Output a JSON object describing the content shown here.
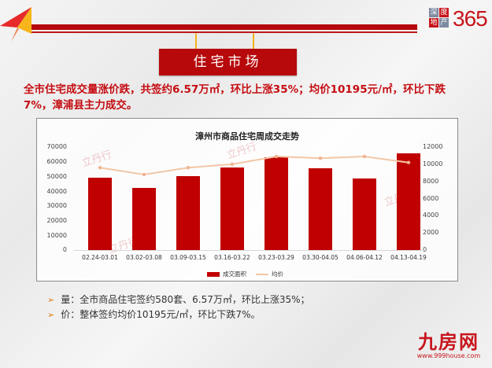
{
  "header": {
    "logo_small_chars": [
      "深",
      "度",
      "地",
      "产"
    ],
    "logo_number": "365",
    "banner_title": "住宅市场"
  },
  "headline": "全市住宅成交量涨价跌，共签约6.57万㎡，环比上涨35%；均价10195元/㎡，环比下跌7%，漳浦县主力成交。",
  "chart": {
    "title": "漳州市商品住宅周成交走势",
    "legend_bar": "成交面积",
    "legend_line": "均价"
  },
  "chart_data": {
    "type": "bar",
    "title": "漳州市商品住宅周成交走势",
    "categories": [
      "02.24-03.01",
      "03.02-03.08",
      "03.09-03.15",
      "03.16-03.22",
      "03.23-03.29",
      "03.30-04.05",
      "04.06-04.12",
      "04.13-04.19"
    ],
    "series": [
      {
        "name": "成交面积",
        "type": "bar",
        "axis": "left",
        "color": "#c00000",
        "values": [
          49000,
          42300,
          50200,
          56100,
          63000,
          55600,
          48600,
          65700
        ]
      },
      {
        "name": "均价",
        "type": "line",
        "axis": "right",
        "color": "#f3c7a5",
        "values": [
          9600,
          8800,
          9600,
          10000,
          10900,
          10700,
          10900,
          10195
        ]
      }
    ],
    "y_left": {
      "ticks": [
        "70000",
        "60000",
        "50000",
        "40000",
        "30000",
        "20000",
        "10000",
        "0"
      ],
      "ylim": [
        0,
        70000
      ]
    },
    "y_right": {
      "ticks": [
        "12000",
        "10000",
        "8000",
        "6000",
        "4000",
        "2000",
        "0"
      ],
      "ylim": [
        0,
        12000
      ]
    },
    "xlabel": "",
    "ylabel": "",
    "legend_position": "bottom",
    "grid": false
  },
  "bullets": [
    "量：全市商品住宅签约580套、6.57万㎡，环比上涨35%；",
    "价：整体签约均价10195元/㎡，环比下跌7%。"
  ],
  "bullet_marker": "➢",
  "watermark": "立丹行",
  "footer": {
    "logo_text": "九房网",
    "url": "www.999house.com"
  },
  "colors": {
    "brand_red": "#b7090b",
    "bar": "#c00000",
    "line": "#f3c7a5",
    "accent_gold": "#f2b11a"
  }
}
